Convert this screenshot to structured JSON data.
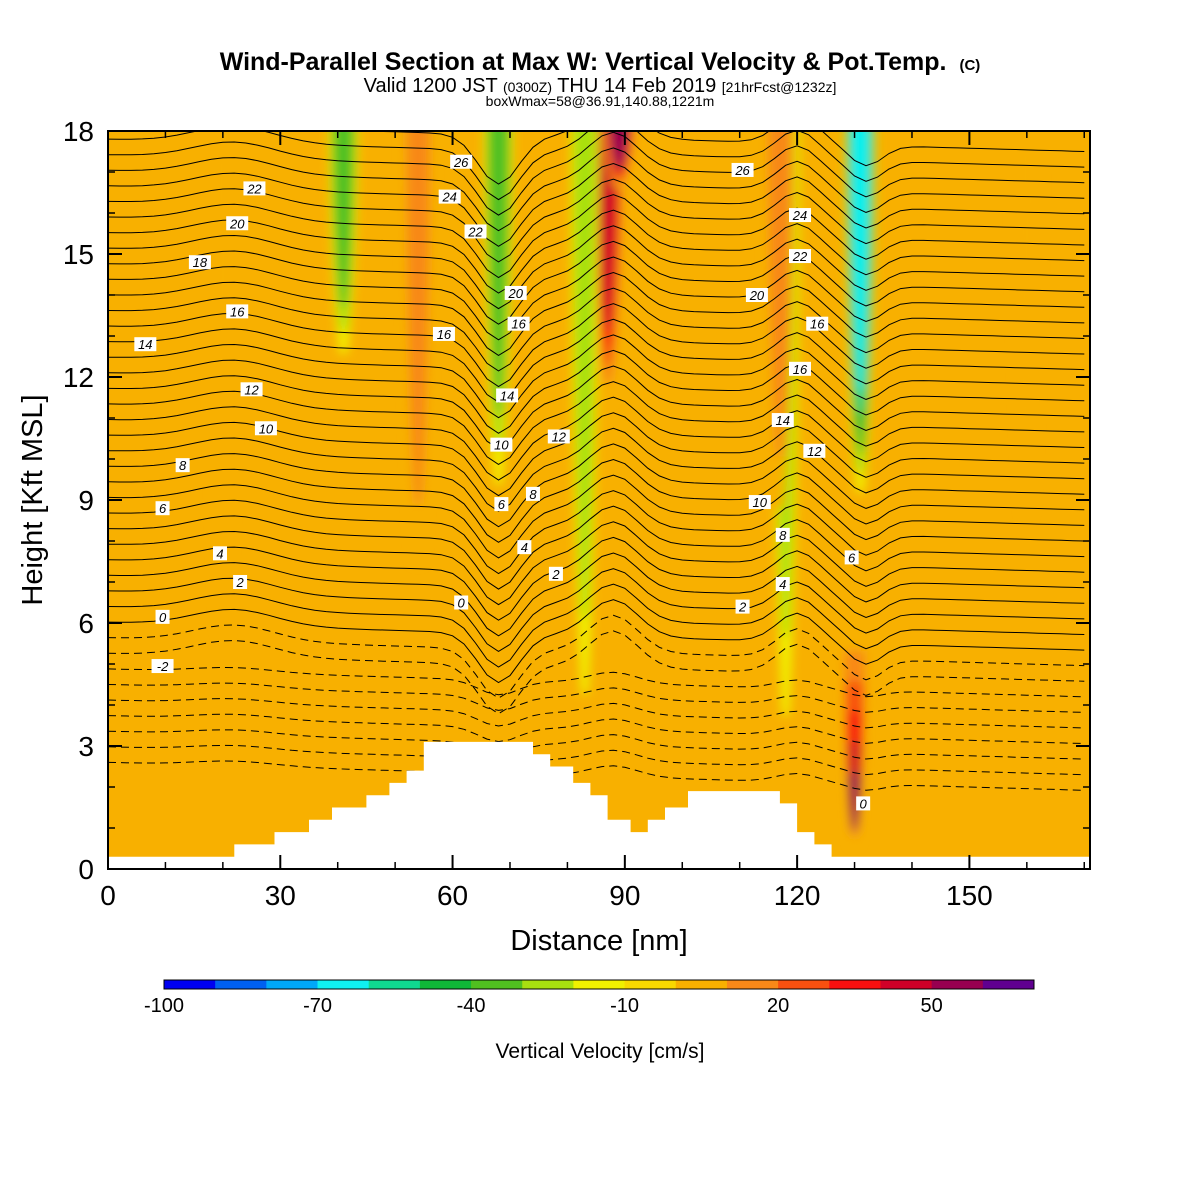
{
  "title": {
    "main": "Wind-Parallel Section at Max W: Vertical Velocity & Pot.Temp.",
    "main_suffix": "(C)",
    "valid_prefix": "Valid 1200 JST",
    "valid_zulu": "(0300Z)",
    "valid_date": "THU 14 Feb 2019",
    "forecast": "[21hrFcst@1232z]",
    "box_info": "boxWmax=58@36.91,140.88,1221m"
  },
  "chart_data": {
    "type": "heatmap",
    "xlabel": "Distance [nm]",
    "ylabel": "Height [Kft MSL]",
    "xlim": [
      0,
      171
    ],
    "ylim": [
      0,
      18
    ],
    "x_ticks": [
      "0",
      "30",
      "60",
      "90",
      "120",
      "150"
    ],
    "y_ticks": [
      "0",
      "3",
      "6",
      "9",
      "12",
      "15",
      "18"
    ],
    "colorbar": {
      "label": "Vertical Velocity [cm/s]",
      "tick_labels": [
        "-100",
        "-70",
        "-40",
        "-10",
        "20",
        "50"
      ],
      "tick_values": [
        -100,
        -70,
        -40,
        -10,
        20,
        50
      ],
      "colors": [
        "#0000f0",
        "#0060f0",
        "#00a8f8",
        "#10f0f0",
        "#10d890",
        "#10b838",
        "#50c020",
        "#a8e010",
        "#f0f000",
        "#f8d800",
        "#f8b000",
        "#f88818",
        "#f85010",
        "#f81010",
        "#d00028",
        "#980050",
        "#600090"
      ]
    },
    "velocity_features": [
      {
        "x": 41,
        "kind": "downdraft",
        "bottom": 12.0,
        "peak": -35
      },
      {
        "x": 68,
        "kind": "downdraft",
        "bottom": 8.5,
        "peak": -40
      },
      {
        "x": 87,
        "kind": "updraft",
        "bottom": 11.0,
        "peak": 45
      },
      {
        "x": 89,
        "kind": "updraft",
        "bottom": 16.5,
        "peak": 58
      },
      {
        "x": 131,
        "kind": "downdraft",
        "bottom": 8.7,
        "peak": -65
      },
      {
        "x": 130,
        "kind": "updraft",
        "bottom": 0.3,
        "peak": 58
      },
      {
        "x": 83,
        "kind": "downdraft",
        "bottom": 2.4,
        "peak": -25
      },
      {
        "x": 118,
        "kind": "downdraft",
        "bottom": 1.8,
        "peak": -25
      },
      {
        "x": 20,
        "kind": "updraft",
        "bottom": 3.0,
        "peak": 12
      },
      {
        "x": 54,
        "kind": "updraft",
        "bottom": 6.0,
        "peak": 22
      },
      {
        "x": 117,
        "kind": "updraft",
        "bottom": 7.5,
        "peak": 24
      },
      {
        "x": 160,
        "kind": "updraft",
        "bottom": 6.5,
        "peak": 14
      }
    ],
    "theta_contour_labels": [
      {
        "text": "26",
        "x": 61.5,
        "y": 17.25
      },
      {
        "text": "26",
        "x": 110.5,
        "y": 17.05
      },
      {
        "text": "22",
        "x": 25.5,
        "y": 16.6
      },
      {
        "text": "24",
        "x": 59.5,
        "y": 16.4
      },
      {
        "text": "24",
        "x": 120.5,
        "y": 15.95
      },
      {
        "text": "20",
        "x": 22.5,
        "y": 15.75
      },
      {
        "text": "22",
        "x": 64,
        "y": 15.55
      },
      {
        "text": "22",
        "x": 120.5,
        "y": 14.95
      },
      {
        "text": "18",
        "x": 16,
        "y": 14.8
      },
      {
        "text": "20",
        "x": 71,
        "y": 14.05
      },
      {
        "text": "20",
        "x": 113,
        "y": 14.0
      },
      {
        "text": "16",
        "x": 22.5,
        "y": 13.6
      },
      {
        "text": "16",
        "x": 71.5,
        "y": 13.3
      },
      {
        "text": "16",
        "x": 123.5,
        "y": 13.3
      },
      {
        "text": "16",
        "x": 58.5,
        "y": 13.05
      },
      {
        "text": "14",
        "x": 6.5,
        "y": 12.8
      },
      {
        "text": "16",
        "x": 120.5,
        "y": 12.2
      },
      {
        "text": "12",
        "x": 25,
        "y": 11.7
      },
      {
        "text": "14",
        "x": 69.5,
        "y": 11.55
      },
      {
        "text": "14",
        "x": 117.5,
        "y": 10.95
      },
      {
        "text": "10",
        "x": 27.5,
        "y": 10.75
      },
      {
        "text": "12",
        "x": 78.5,
        "y": 10.55
      },
      {
        "text": "10",
        "x": 68.5,
        "y": 10.35
      },
      {
        "text": "12",
        "x": 123,
        "y": 10.2
      },
      {
        "text": "8",
        "x": 13,
        "y": 9.85
      },
      {
        "text": "8",
        "x": 74,
        "y": 9.15
      },
      {
        "text": "6",
        "x": 9.5,
        "y": 8.8
      },
      {
        "text": "6",
        "x": 68.5,
        "y": 8.9
      },
      {
        "text": "10",
        "x": 113.5,
        "y": 8.95
      },
      {
        "text": "8",
        "x": 117.5,
        "y": 8.15
      },
      {
        "text": "4",
        "x": 72.5,
        "y": 7.85
      },
      {
        "text": "4",
        "x": 19.5,
        "y": 7.7
      },
      {
        "text": "6",
        "x": 129.5,
        "y": 7.6
      },
      {
        "text": "2",
        "x": 78,
        "y": 7.2
      },
      {
        "text": "2",
        "x": 23,
        "y": 7.0
      },
      {
        "text": "4",
        "x": 117.5,
        "y": 6.95
      },
      {
        "text": "0",
        "x": 61.5,
        "y": 6.5
      },
      {
        "text": "2",
        "x": 110.5,
        "y": 6.4
      },
      {
        "text": "0",
        "x": 9.5,
        "y": 6.15
      },
      {
        "text": "-2",
        "x": 9.5,
        "y": 4.95
      },
      {
        "text": "0",
        "x": 131.5,
        "y": 1.6
      }
    ],
    "terrain_x": [
      0,
      22,
      22,
      29,
      29,
      35,
      35,
      39,
      39,
      42,
      42,
      45,
      45,
      49,
      49,
      52,
      52,
      55,
      55,
      59,
      59,
      64,
      64,
      74,
      74,
      77,
      77,
      81,
      81,
      84,
      84,
      87,
      87,
      91,
      91,
      94,
      94,
      97,
      97,
      101,
      101,
      107,
      107,
      111,
      111,
      117,
      117,
      120,
      120,
      123,
      123,
      126,
      126,
      171
    ],
    "terrain_y": [
      0.3,
      0.3,
      0.6,
      0.6,
      0.9,
      0.9,
      1.2,
      1.2,
      1.5,
      1.5,
      1.5,
      1.5,
      1.8,
      1.8,
      2.1,
      2.1,
      2.4,
      2.4,
      3.1,
      3.1,
      3.1,
      3.1,
      3.1,
      3.1,
      2.8,
      2.8,
      2.5,
      2.5,
      2.1,
      2.1,
      1.8,
      1.8,
      1.2,
      1.2,
      0.9,
      0.9,
      1.2,
      1.2,
      1.5,
      1.5,
      1.9,
      1.9,
      1.9,
      1.9,
      1.9,
      1.9,
      1.6,
      1.6,
      0.9,
      0.9,
      0.6,
      0.6,
      0.3,
      0.3
    ]
  }
}
